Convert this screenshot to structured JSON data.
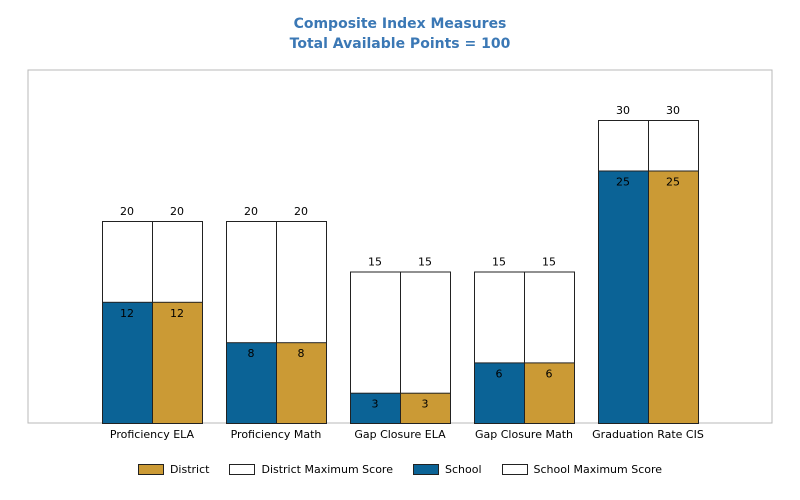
{
  "chart_data": {
    "type": "bar",
    "title": "Composite Index Measures",
    "subtitle": "Total Available Points = 100",
    "categories": [
      "Proficiency ELA",
      "Proficiency Math",
      "Gap Closure ELA",
      "Gap Closure Math",
      "Graduation Rate CIS"
    ],
    "series": [
      {
        "name": "School",
        "values": [
          12,
          8,
          3,
          6,
          25
        ],
        "color": "#0b6396"
      },
      {
        "name": "District",
        "values": [
          12,
          8,
          3,
          6,
          25
        ],
        "color": "#cb9a35"
      }
    ],
    "maximum_series": [
      {
        "name": "School Maximum Score",
        "values": [
          20,
          20,
          15,
          15,
          30
        ],
        "color": "#ffffff"
      },
      {
        "name": "District Maximum Score",
        "values": [
          20,
          20,
          15,
          15,
          30
        ],
        "color": "#ffffff"
      }
    ],
    "ylim": [
      0,
      36
    ],
    "grid": false,
    "legend_placement": "bottom",
    "legend_entries": [
      {
        "label": "District",
        "color": "#cb9a35"
      },
      {
        "label": "District Maximum Score",
        "color": "#ffffff"
      },
      {
        "label": "School",
        "color": "#0b6396"
      },
      {
        "label": "School Maximum Score",
        "color": "#ffffff"
      }
    ]
  }
}
